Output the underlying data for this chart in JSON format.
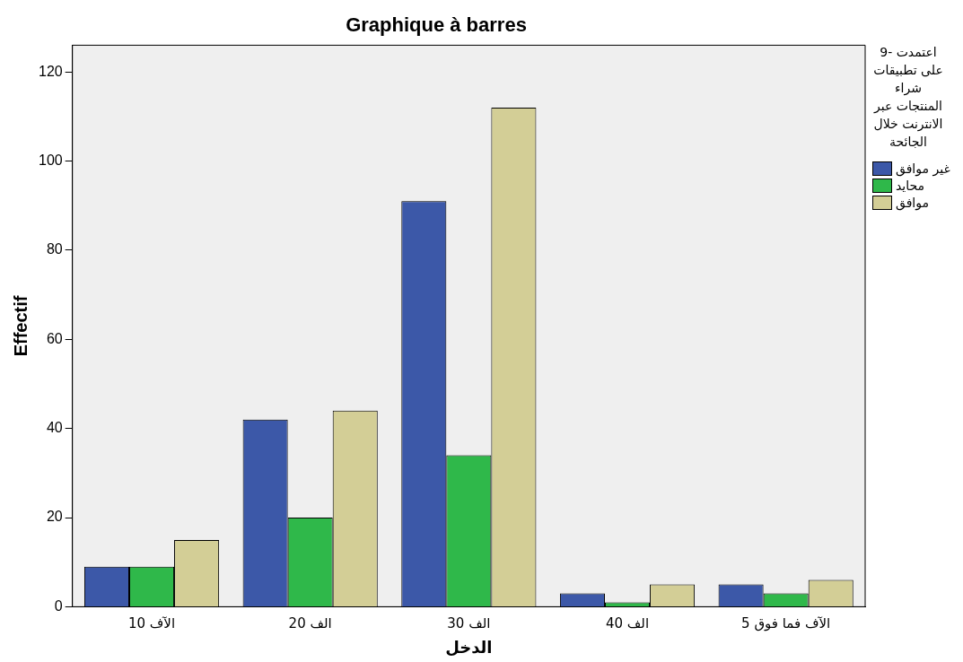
{
  "chart_data": {
    "type": "bar",
    "title": "Graphique à barres",
    "xlabel": "الدخل",
    "ylabel": "Effectif",
    "legend_title": "9- اعتمدت على تطبيقات شراء المنتجات عبر الانترنت خلال الجائحة",
    "categories": [
      "10 الآف",
      "20 الف",
      "30 الف",
      "40 الف",
      "5 الآف فما فوق"
    ],
    "series": [
      {
        "name": "غير موافق",
        "color": "#3c58a8",
        "values": [
          9,
          42,
          91,
          3,
          5
        ]
      },
      {
        "name": "محايد",
        "color": "#2fb84a",
        "values": [
          9,
          20,
          34,
          1,
          3
        ]
      },
      {
        "name": "موافق",
        "color": "#d3ce96",
        "values": [
          15,
          44,
          112,
          5,
          6
        ]
      }
    ],
    "ylim": [
      0,
      126
    ],
    "yticks": [
      0,
      20,
      40,
      60,
      80,
      100,
      120
    ],
    "grid": false,
    "legend": "right"
  }
}
